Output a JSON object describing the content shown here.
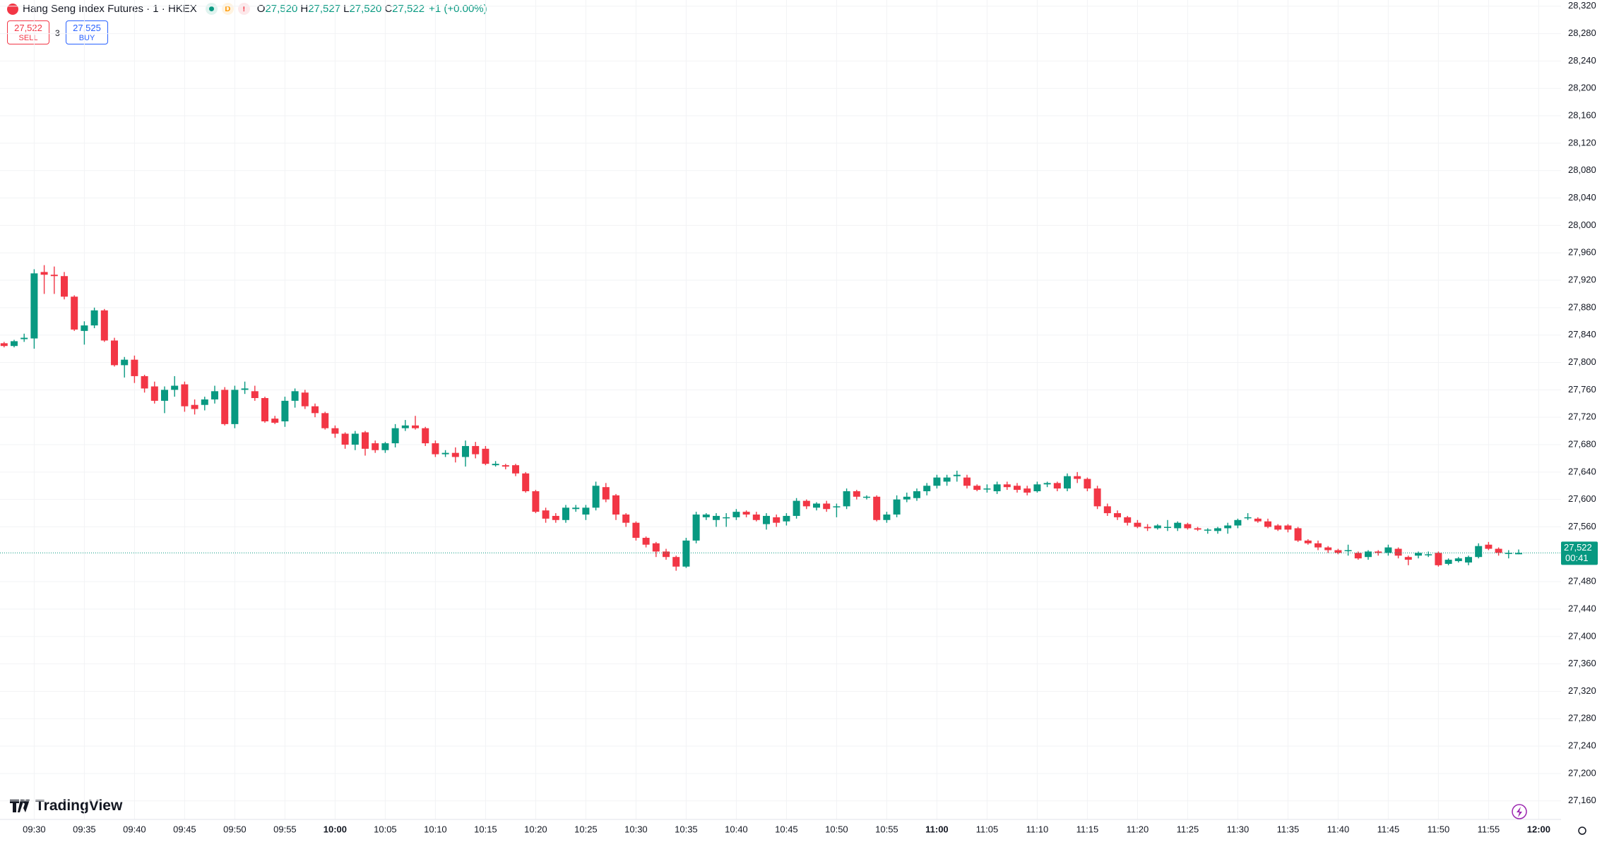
{
  "toolbar": {
    "symbol": "Hang Seng Index Futures · 1 · HKEX",
    "badges": [
      "D",
      "!"
    ],
    "ohlc": [
      {
        "key": "O",
        "value": "27,520"
      },
      {
        "key": "H",
        "value": "27,527"
      },
      {
        "key": "L",
        "value": "27,520"
      },
      {
        "key": "C",
        "value": "27,522"
      }
    ],
    "change": "+1 (+0.00%)",
    "sell": {
      "price": "27,522",
      "label": "SELL"
    },
    "spread": "3",
    "buy": {
      "price": "27,525",
      "label": "BUY"
    }
  },
  "brand": "TradingView",
  "chart_data": {
    "type": "candlestick",
    "up_color": "#089981",
    "down_color": "#f23645",
    "grid": true,
    "categories": [
      null,
      null,
      null,
      "09:30",
      null,
      null,
      null,
      null,
      "09:35",
      null,
      null,
      null,
      null,
      "09:40",
      null,
      null,
      null,
      null,
      "09:45",
      null,
      null,
      null,
      null,
      "09:50",
      null,
      null,
      null,
      null,
      "09:55",
      null,
      null,
      null,
      null,
      "10:00",
      null,
      null,
      null,
      null,
      "10:05",
      null,
      null,
      null,
      null,
      "10:10",
      null,
      null,
      null,
      null,
      "10:15",
      null,
      null,
      null,
      null,
      "10:20",
      null,
      null,
      null,
      null,
      "10:25",
      null,
      null,
      null,
      null,
      "10:30",
      null,
      null,
      null,
      null,
      "10:35",
      null,
      null,
      null,
      null,
      "10:40",
      null,
      null,
      null,
      null,
      "10:45",
      null,
      null,
      null,
      null,
      "10:50",
      null,
      null,
      null,
      null,
      "10:55",
      null,
      null,
      null,
      null,
      "11:00",
      null,
      null,
      null,
      null,
      "11:05",
      null,
      null,
      null,
      null,
      "11:10",
      null,
      null,
      null,
      null,
      "11:15",
      null,
      null,
      null,
      null,
      "11:20",
      null,
      null,
      null,
      null,
      "11:25",
      null,
      null,
      null,
      null,
      "11:30",
      null,
      null,
      null,
      null,
      "11:35",
      null,
      null,
      null,
      null,
      "11:40",
      null,
      null,
      null,
      null,
      "11:45",
      null,
      null,
      null,
      null,
      "11:50",
      null,
      null,
      null,
      null,
      "11:55",
      null,
      null,
      null,
      null,
      "12:00"
    ],
    "open": [
      27828,
      27824,
      27834,
      27835,
      27932,
      27928,
      27926,
      27896,
      27846,
      27854,
      27876,
      27832,
      27796,
      27804,
      27780,
      27765,
      27744,
      27760,
      27768,
      27738,
      27738,
      27746,
      27760,
      27710,
      27760,
      27758,
      27748,
      27718,
      27714,
      27744,
      27756,
      27736,
      27726,
      27704,
      27696,
      27680,
      27698,
      27682,
      27672,
      27682,
      27704,
      27708,
      27704,
      27682,
      27666,
      27668,
      27662,
      27678,
      27674,
      27650,
      27650,
      27650,
      27638,
      27612,
      27584,
      27576,
      27570,
      27586,
      27578,
      27588,
      27618,
      27606,
      27578,
      27566,
      27544,
      27536,
      27524,
      27516,
      27502,
      27540,
      27574,
      27570,
      27574,
      27574,
      27582,
      27578,
      27564,
      27574,
      27568,
      27576,
      27598,
      27588,
      27594,
      27590,
      27590,
      27612,
      27604,
      27604,
      27570,
      27578,
      27600,
      27602,
      27612,
      27620,
      27626,
      27634,
      27632,
      27620,
      27616,
      27612,
      27622,
      27620,
      27616,
      27612,
      27622,
      27624,
      27616,
      27634,
      27630,
      27616,
      27590,
      27580,
      27574,
      27566,
      27560,
      27558,
      27560,
      27558,
      27564,
      27558,
      27556,
      27554,
      27558,
      27562,
      27574,
      27572,
      27568,
      27562,
      27562,
      27558,
      27540,
      27536,
      27530,
      27526,
      27526,
      27522,
      27516,
      27524,
      27522,
      27528,
      27516,
      27518,
      27520,
      27522,
      27506,
      27510,
      27508,
      27516,
      27534,
      27528,
      27522,
      27520,
      null,
      null
    ],
    "high": [
      27830,
      27833,
      27842,
      27936,
      27942,
      27940,
      27932,
      27898,
      27860,
      27880,
      27878,
      27836,
      27808,
      27810,
      27782,
      27772,
      27765,
      27780,
      27772,
      27746,
      27750,
      27766,
      27764,
      27766,
      27772,
      27766,
      27750,
      27722,
      27750,
      27762,
      27760,
      27740,
      27728,
      27708,
      27698,
      27700,
      27700,
      27686,
      27684,
      27710,
      27716,
      27722,
      27706,
      27686,
      27672,
      27676,
      27686,
      27684,
      27678,
      27656,
      27652,
      27652,
      27640,
      27614,
      27588,
      27580,
      27592,
      27592,
      27592,
      27626,
      27624,
      27608,
      27580,
      27568,
      27546,
      27538,
      27528,
      27518,
      27544,
      27582,
      27580,
      27580,
      27580,
      27586,
      27584,
      27582,
      27580,
      27578,
      27580,
      27602,
      27600,
      27596,
      27598,
      27594,
      27616,
      27614,
      27606,
      27606,
      27582,
      27606,
      27610,
      27616,
      27624,
      27636,
      27636,
      27642,
      27636,
      27622,
      27622,
      27626,
      27626,
      27624,
      27620,
      27626,
      27626,
      27626,
      27638,
      27640,
      27632,
      27620,
      27594,
      27584,
      27576,
      27570,
      27564,
      27564,
      27570,
      27568,
      27566,
      27560,
      27558,
      27560,
      27566,
      27572,
      27580,
      27574,
      27572,
      27564,
      27564,
      27560,
      27542,
      27540,
      27532,
      27528,
      27534,
      27524,
      27526,
      27526,
      27534,
      27530,
      27518,
      27524,
      27524,
      27524,
      27514,
      27516,
      27518,
      27536,
      27538,
      27530,
      27526,
      27527,
      null,
      null
    ],
    "low": [
      27822,
      27822,
      27830,
      27820,
      27900,
      27900,
      27892,
      27846,
      27826,
      27850,
      27830,
      27794,
      27778,
      27770,
      27756,
      27740,
      27726,
      27750,
      27728,
      27724,
      27730,
      27740,
      27708,
      27704,
      27754,
      27744,
      27712,
      27710,
      27706,
      27734,
      27732,
      27720,
      27702,
      27690,
      27674,
      27672,
      27664,
      27668,
      27668,
      27676,
      27700,
      27702,
      27678,
      27662,
      27662,
      27654,
      27648,
      27660,
      27650,
      27648,
      27644,
      27634,
      27610,
      27580,
      27566,
      27566,
      27566,
      27582,
      27570,
      27584,
      27596,
      27570,
      27560,
      27540,
      27530,
      27516,
      27512,
      27496,
      27500,
      27536,
      27570,
      27560,
      27560,
      27570,
      27574,
      27568,
      27556,
      27560,
      27562,
      27572,
      27586,
      27584,
      27582,
      27574,
      27586,
      27600,
      27600,
      27568,
      27566,
      27574,
      27596,
      27598,
      27606,
      27616,
      27620,
      27626,
      27616,
      27612,
      27610,
      27608,
      27614,
      27610,
      27606,
      27610,
      27618,
      27612,
      27612,
      27624,
      27612,
      27586,
      27576,
      27570,
      27562,
      27558,
      27554,
      27556,
      27554,
      27554,
      27556,
      27554,
      27550,
      27550,
      27550,
      27558,
      27570,
      27566,
      27558,
      27554,
      27552,
      27538,
      27534,
      27526,
      27522,
      27520,
      27518,
      27512,
      27512,
      27518,
      27518,
      27514,
      27504,
      27514,
      27516,
      27502,
      27504,
      27508,
      27504,
      27514,
      27526,
      27518,
      27514,
      27520,
      null,
      null
    ],
    "close": [
      27824,
      27831,
      27836,
      27930,
      27928,
      27926,
      27896,
      27848,
      27854,
      27876,
      27832,
      27796,
      27804,
      27780,
      27762,
      27744,
      27760,
      27766,
      27736,
      27732,
      27746,
      27758,
      27710,
      27760,
      27762,
      27748,
      27714,
      27712,
      27744,
      27758,
      27736,
      27726,
      27704,
      27696,
      27680,
      27696,
      27674,
      27672,
      27682,
      27704,
      27708,
      27704,
      27682,
      27666,
      27668,
      27662,
      27678,
      27666,
      27652,
      27652,
      27648,
      27638,
      27612,
      27582,
      27572,
      27570,
      27588,
      27588,
      27588,
      27620,
      27600,
      27578,
      27566,
      27544,
      27534,
      27524,
      27516,
      27502,
      27540,
      27578,
      27578,
      27576,
      27574,
      27582,
      27578,
      27570,
      27576,
      27566,
      27576,
      27598,
      27590,
      27594,
      27586,
      27590,
      27612,
      27604,
      27604,
      27570,
      27578,
      27600,
      27604,
      27612,
      27620,
      27632,
      27632,
      27636,
      27620,
      27614,
      27616,
      27622,
      27618,
      27614,
      27610,
      27622,
      27624,
      27616,
      27634,
      27630,
      27616,
      27590,
      27580,
      27574,
      27566,
      27560,
      27558,
      27562,
      27560,
      27566,
      27558,
      27556,
      27556,
      27558,
      27562,
      27570,
      27574,
      27568,
      27560,
      27556,
      27556,
      27540,
      27536,
      27530,
      27526,
      27522,
      27526,
      27514,
      27524,
      27522,
      27530,
      27518,
      27512,
      27522,
      27520,
      27504,
      27512,
      27514,
      27516,
      27532,
      27528,
      27522,
      27522,
      27522,
      null,
      null
    ],
    "ylim": [
      27133,
      28329
    ],
    "yticks": [
      {
        "value": 28320,
        "label": "28,320"
      },
      {
        "value": 28280,
        "label": "28,280"
      },
      {
        "value": 28240,
        "label": "28,240"
      },
      {
        "value": 28200,
        "label": "28,200"
      },
      {
        "value": 28160,
        "label": "28,160"
      },
      {
        "value": 28120,
        "label": "28,120"
      },
      {
        "value": 28080,
        "label": "28,080"
      },
      {
        "value": 28040,
        "label": "28,040"
      },
      {
        "value": 28000,
        "label": "28,000"
      },
      {
        "value": 27960,
        "label": "27,960"
      },
      {
        "value": 27920,
        "label": "27,920"
      },
      {
        "value": 27880,
        "label": "27,880"
      },
      {
        "value": 27840,
        "label": "27,840"
      },
      {
        "value": 27800,
        "label": "27,800"
      },
      {
        "value": 27760,
        "label": "27,760"
      },
      {
        "value": 27720,
        "label": "27,720"
      },
      {
        "value": 27680,
        "label": "27,680"
      },
      {
        "value": 27640,
        "label": "27,640"
      },
      {
        "value": 27600,
        "label": "27,600"
      },
      {
        "value": 27560,
        "label": "27,560"
      },
      {
        "value": 27480,
        "label": "27,480"
      },
      {
        "value": 27440,
        "label": "27,440"
      },
      {
        "value": 27400,
        "label": "27,400"
      },
      {
        "value": 27360,
        "label": "27,360"
      },
      {
        "value": 27320,
        "label": "27,320"
      },
      {
        "value": 27280,
        "label": "27,280"
      },
      {
        "value": 27240,
        "label": "27,240"
      },
      {
        "value": 27200,
        "label": "27,200"
      },
      {
        "value": 27160,
        "label": "27,160"
      }
    ],
    "last_price": {
      "value": 27522,
      "label": "27,522",
      "countdown": "00:41"
    }
  }
}
